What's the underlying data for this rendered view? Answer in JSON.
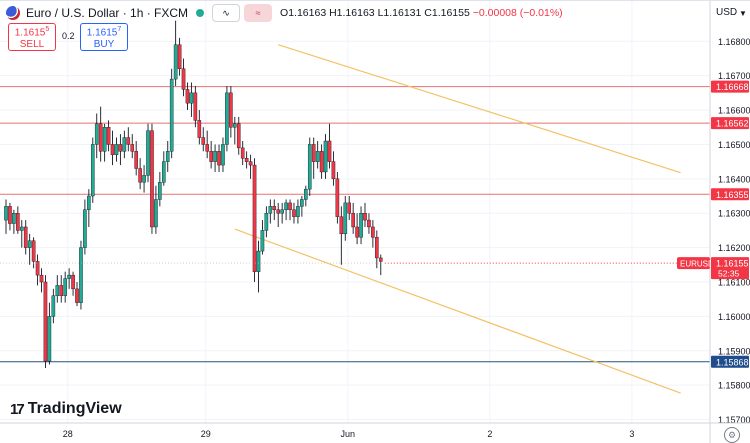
{
  "header": {
    "symbol_title": "Euro / U.S. Dollar · 1h · FXCM",
    "open": "O1.16163",
    "high": "H1.16163",
    "low": "L1.16131",
    "close": "C1.16155",
    "change": "−0.00008 (−0.01%)",
    "compare_icon": "compare-waves-icon",
    "more_icon": "menu-icon"
  },
  "trade": {
    "sell_price": "1.1615",
    "sell_price_sup": "5",
    "sell_label": "SELL",
    "buy_price": "1.1615",
    "buy_price_sup": "7",
    "buy_label": "BUY",
    "spread": "0.2"
  },
  "axis": {
    "currency": "USD"
  },
  "branding": {
    "name": "TradingView"
  },
  "colors": {
    "up": "#22ab94",
    "down": "#f23645",
    "resistance_line": "#e57373",
    "support_line": "#26547c",
    "channel_line": "#f5c165",
    "label_red": "#f23645",
    "label_blue": "#1e4c8c",
    "label_price": "#f23645"
  },
  "chart_data": {
    "type": "candlestick",
    "symbol": "EURUSD",
    "timeframe": "1h",
    "ylim": [
      1.1569,
      1.1692
    ],
    "y_ticks": [
      "1.16800",
      "1.16700",
      "1.16600",
      "1.16500",
      "1.16400",
      "1.16300",
      "1.16200",
      "1.16100",
      "1.16000",
      "1.15900",
      "1.15800",
      "1.15700"
    ],
    "x_ticks": [
      {
        "label": "28",
        "bar": 5
      },
      {
        "label": "29",
        "bar": 40
      },
      {
        "label": "Jun",
        "bar": 76
      },
      {
        "label": "2",
        "bar": 112
      },
      {
        "label": "3",
        "bar": 148
      }
    ],
    "horizontal_levels": [
      {
        "price": 1.16668,
        "label": "1.16668",
        "role": "resistance"
      },
      {
        "price": 1.16562,
        "label": "1.16562",
        "role": "resistance"
      },
      {
        "price": 1.16355,
        "label": "1.16355",
        "role": "resistance"
      },
      {
        "price": 1.15868,
        "label": "1.15868",
        "role": "support"
      }
    ],
    "channel_lines": [
      {
        "from": {
          "bar": 69,
          "price": 1.1679
        },
        "to": {
          "bar": 171,
          "price": 1.16418
        }
      },
      {
        "from": {
          "bar": 58,
          "price": 1.16254
        },
        "to": {
          "bar": 171,
          "price": 1.15777
        }
      }
    ],
    "current_price": {
      "value": 1.16155,
      "label": "1.16155",
      "countdown": "52:35",
      "symbol_tag": "EURUSD"
    },
    "candles": [
      {
        "o": 1.1628,
        "h": 1.1634,
        "l": 1.1624,
        "c": 1.1632
      },
      {
        "o": 1.1632,
        "h": 1.1633,
        "l": 1.1625,
        "c": 1.1627
      },
      {
        "o": 1.1627,
        "h": 1.1631,
        "l": 1.1624,
        "c": 1.163
      },
      {
        "o": 1.163,
        "h": 1.1632,
        "l": 1.1624,
        "c": 1.1625
      },
      {
        "o": 1.1625,
        "h": 1.1628,
        "l": 1.162,
        "c": 1.1626
      },
      {
        "o": 1.1626,
        "h": 1.1628,
        "l": 1.1618,
        "c": 1.162
      },
      {
        "o": 1.162,
        "h": 1.1624,
        "l": 1.1615,
        "c": 1.1622
      },
      {
        "o": 1.1622,
        "h": 1.1623,
        "l": 1.1614,
        "c": 1.1616
      },
      {
        "o": 1.1616,
        "h": 1.1618,
        "l": 1.1609,
        "c": 1.1612
      },
      {
        "o": 1.1612,
        "h": 1.1614,
        "l": 1.1607,
        "c": 1.161
      },
      {
        "o": 1.161,
        "h": 1.1612,
        "l": 1.1585,
        "c": 1.1587
      },
      {
        "o": 1.1587,
        "h": 1.1604,
        "l": 1.1586,
        "c": 1.16
      },
      {
        "o": 1.16,
        "h": 1.1608,
        "l": 1.1598,
        "c": 1.1606
      },
      {
        "o": 1.1606,
        "h": 1.1612,
        "l": 1.1604,
        "c": 1.1609
      },
      {
        "o": 1.1609,
        "h": 1.1612,
        "l": 1.1604,
        "c": 1.1606
      },
      {
        "o": 1.1606,
        "h": 1.1613,
        "l": 1.1604,
        "c": 1.1611
      },
      {
        "o": 1.1611,
        "h": 1.1614,
        "l": 1.1608,
        "c": 1.1612
      },
      {
        "o": 1.1612,
        "h": 1.1613,
        "l": 1.1606,
        "c": 1.1608
      },
      {
        "o": 1.1608,
        "h": 1.161,
        "l": 1.1603,
        "c": 1.1604
      },
      {
        "o": 1.1604,
        "h": 1.1622,
        "l": 1.1602,
        "c": 1.162
      },
      {
        "o": 1.162,
        "h": 1.1634,
        "l": 1.1618,
        "c": 1.1631
      },
      {
        "o": 1.1631,
        "h": 1.1637,
        "l": 1.1626,
        "c": 1.1635
      },
      {
        "o": 1.1635,
        "h": 1.1652,
        "l": 1.1633,
        "c": 1.165
      },
      {
        "o": 1.165,
        "h": 1.1659,
        "l": 1.1646,
        "c": 1.1656
      },
      {
        "o": 1.1656,
        "h": 1.1661,
        "l": 1.1645,
        "c": 1.1648
      },
      {
        "o": 1.1648,
        "h": 1.1656,
        "l": 1.1645,
        "c": 1.1655
      },
      {
        "o": 1.1655,
        "h": 1.1657,
        "l": 1.1648,
        "c": 1.165
      },
      {
        "o": 1.165,
        "h": 1.1654,
        "l": 1.1644,
        "c": 1.1647
      },
      {
        "o": 1.1647,
        "h": 1.1652,
        "l": 1.1645,
        "c": 1.165
      },
      {
        "o": 1.165,
        "h": 1.1653,
        "l": 1.1644,
        "c": 1.1648
      },
      {
        "o": 1.1648,
        "h": 1.1654,
        "l": 1.1646,
        "c": 1.1652
      },
      {
        "o": 1.1652,
        "h": 1.1655,
        "l": 1.1648,
        "c": 1.165
      },
      {
        "o": 1.165,
        "h": 1.1653,
        "l": 1.1646,
        "c": 1.1648
      },
      {
        "o": 1.1648,
        "h": 1.1651,
        "l": 1.1641,
        "c": 1.1643
      },
      {
        "o": 1.1643,
        "h": 1.1646,
        "l": 1.1637,
        "c": 1.1639
      },
      {
        "o": 1.1639,
        "h": 1.1644,
        "l": 1.1636,
        "c": 1.1641
      },
      {
        "o": 1.1641,
        "h": 1.1656,
        "l": 1.1639,
        "c": 1.1654
      },
      {
        "o": 1.1654,
        "h": 1.1656,
        "l": 1.1624,
        "c": 1.1626
      },
      {
        "o": 1.1626,
        "h": 1.1638,
        "l": 1.1624,
        "c": 1.1634
      },
      {
        "o": 1.1634,
        "h": 1.1642,
        "l": 1.1632,
        "c": 1.1639
      },
      {
        "o": 1.1639,
        "h": 1.1648,
        "l": 1.1638,
        "c": 1.1645
      },
      {
        "o": 1.1645,
        "h": 1.1651,
        "l": 1.1642,
        "c": 1.1648
      },
      {
        "o": 1.1648,
        "h": 1.1672,
        "l": 1.1646,
        "c": 1.1669
      },
      {
        "o": 1.1669,
        "h": 1.1686,
        "l": 1.1667,
        "c": 1.1679
      },
      {
        "o": 1.1679,
        "h": 1.1681,
        "l": 1.167,
        "c": 1.1672
      },
      {
        "o": 1.1672,
        "h": 1.1675,
        "l": 1.1664,
        "c": 1.1666
      },
      {
        "o": 1.1666,
        "h": 1.1668,
        "l": 1.166,
        "c": 1.1662
      },
      {
        "o": 1.1662,
        "h": 1.1668,
        "l": 1.1658,
        "c": 1.1665
      },
      {
        "o": 1.1665,
        "h": 1.1667,
        "l": 1.1655,
        "c": 1.1657
      },
      {
        "o": 1.1657,
        "h": 1.166,
        "l": 1.165,
        "c": 1.1652
      },
      {
        "o": 1.1652,
        "h": 1.1655,
        "l": 1.1648,
        "c": 1.165
      },
      {
        "o": 1.165,
        "h": 1.1654,
        "l": 1.1646,
        "c": 1.1648
      },
      {
        "o": 1.1648,
        "h": 1.1651,
        "l": 1.1643,
        "c": 1.1645
      },
      {
        "o": 1.1645,
        "h": 1.165,
        "l": 1.1642,
        "c": 1.1648
      },
      {
        "o": 1.1648,
        "h": 1.165,
        "l": 1.1642,
        "c": 1.1644
      },
      {
        "o": 1.1644,
        "h": 1.1652,
        "l": 1.1642,
        "c": 1.165
      },
      {
        "o": 1.165,
        "h": 1.1667,
        "l": 1.1648,
        "c": 1.1665
      },
      {
        "o": 1.1665,
        "h": 1.1667,
        "l": 1.1652,
        "c": 1.1655
      },
      {
        "o": 1.1655,
        "h": 1.1658,
        "l": 1.165,
        "c": 1.1656
      },
      {
        "o": 1.1656,
        "h": 1.1658,
        "l": 1.1647,
        "c": 1.1649
      },
      {
        "o": 1.1649,
        "h": 1.1651,
        "l": 1.1644,
        "c": 1.1646
      },
      {
        "o": 1.1646,
        "h": 1.1648,
        "l": 1.1643,
        "c": 1.1645
      },
      {
        "o": 1.1645,
        "h": 1.1647,
        "l": 1.164,
        "c": 1.1644
      },
      {
        "o": 1.1644,
        "h": 1.1646,
        "l": 1.161,
        "c": 1.1613
      },
      {
        "o": 1.1613,
        "h": 1.1622,
        "l": 1.1607,
        "c": 1.1619
      },
      {
        "o": 1.1619,
        "h": 1.1628,
        "l": 1.1618,
        "c": 1.1625
      },
      {
        "o": 1.1625,
        "h": 1.1632,
        "l": 1.1623,
        "c": 1.163
      },
      {
        "o": 1.163,
        "h": 1.1634,
        "l": 1.1627,
        "c": 1.1632
      },
      {
        "o": 1.1632,
        "h": 1.1634,
        "l": 1.1628,
        "c": 1.1631
      },
      {
        "o": 1.1631,
        "h": 1.1633,
        "l": 1.1626,
        "c": 1.163
      },
      {
        "o": 1.163,
        "h": 1.1633,
        "l": 1.1627,
        "c": 1.1631
      },
      {
        "o": 1.1631,
        "h": 1.1634,
        "l": 1.1628,
        "c": 1.1633
      },
      {
        "o": 1.1633,
        "h": 1.1634,
        "l": 1.1628,
        "c": 1.1631
      },
      {
        "o": 1.1631,
        "h": 1.1633,
        "l": 1.1627,
        "c": 1.1629
      },
      {
        "o": 1.1629,
        "h": 1.1634,
        "l": 1.1627,
        "c": 1.1632
      },
      {
        "o": 1.1632,
        "h": 1.1635,
        "l": 1.1629,
        "c": 1.1634
      },
      {
        "o": 1.1634,
        "h": 1.1638,
        "l": 1.1632,
        "c": 1.1637
      },
      {
        "o": 1.1637,
        "h": 1.1652,
        "l": 1.1635,
        "c": 1.165
      },
      {
        "o": 1.165,
        "h": 1.1652,
        "l": 1.164,
        "c": 1.1645
      },
      {
        "o": 1.1645,
        "h": 1.1651,
        "l": 1.1643,
        "c": 1.1648
      },
      {
        "o": 1.1648,
        "h": 1.165,
        "l": 1.164,
        "c": 1.1642
      },
      {
        "o": 1.1642,
        "h": 1.1653,
        "l": 1.164,
        "c": 1.1651
      },
      {
        "o": 1.1651,
        "h": 1.1656,
        "l": 1.1643,
        "c": 1.1645
      },
      {
        "o": 1.1645,
        "h": 1.1648,
        "l": 1.1638,
        "c": 1.164
      },
      {
        "o": 1.164,
        "h": 1.1642,
        "l": 1.1627,
        "c": 1.1629
      },
      {
        "o": 1.1629,
        "h": 1.1632,
        "l": 1.1615,
        "c": 1.1624
      },
      {
        "o": 1.1624,
        "h": 1.1635,
        "l": 1.1622,
        "c": 1.1633
      },
      {
        "o": 1.1633,
        "h": 1.1635,
        "l": 1.1628,
        "c": 1.163
      },
      {
        "o": 1.163,
        "h": 1.1633,
        "l": 1.1624,
        "c": 1.1626
      },
      {
        "o": 1.1626,
        "h": 1.163,
        "l": 1.1621,
        "c": 1.1623
      },
      {
        "o": 1.1623,
        "h": 1.1632,
        "l": 1.1621,
        "c": 1.163
      },
      {
        "o": 1.163,
        "h": 1.1633,
        "l": 1.1626,
        "c": 1.1628
      },
      {
        "o": 1.1628,
        "h": 1.163,
        "l": 1.1624,
        "c": 1.1626
      },
      {
        "o": 1.1626,
        "h": 1.1628,
        "l": 1.162,
        "c": 1.1623
      },
      {
        "o": 1.1623,
        "h": 1.1625,
        "l": 1.1614,
        "c": 1.1617
      },
      {
        "o": 1.1617,
        "h": 1.1618,
        "l": 1.1612,
        "c": 1.1616
      }
    ]
  }
}
